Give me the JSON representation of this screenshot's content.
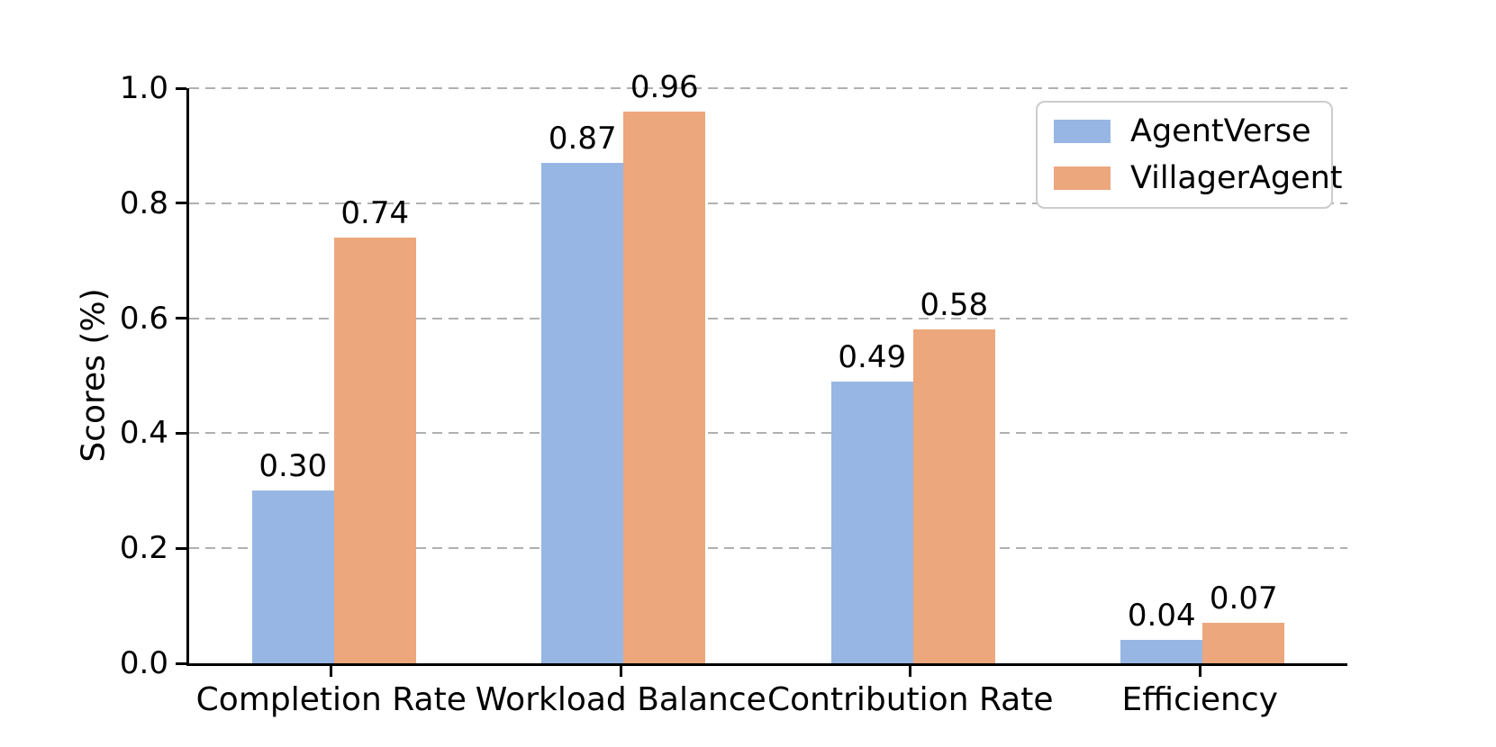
{
  "chart_data": {
    "type": "bar",
    "title": "",
    "ylabel": "Scores (%)",
    "xlabel": "",
    "categories": [
      "Completion Rate",
      "Workload Balance",
      "Contribution Rate",
      "Efficiency"
    ],
    "series": [
      {
        "name": "AgentVerse",
        "color": "#97b6e4",
        "values": [
          0.3,
          0.87,
          0.49,
          0.04
        ],
        "value_labels": [
          "0.30",
          "0.87",
          "0.49",
          "0.04"
        ]
      },
      {
        "name": "VillagerAgent",
        "color": "#eca77d",
        "values": [
          0.74,
          0.96,
          0.58,
          0.07
        ],
        "value_labels": [
          "0.74",
          "0.96",
          "0.58",
          "0.07"
        ]
      }
    ],
    "ylim": [
      0.0,
      1.0
    ],
    "yticks": [
      0.0,
      0.2,
      0.4,
      0.6,
      0.8,
      1.0
    ],
    "ytick_labels": [
      "0.0",
      "0.2",
      "0.4",
      "0.6",
      "0.8",
      "1.0"
    ],
    "grid": "horizontal-dashed",
    "gridline_color": "#b0b0b0",
    "legend_position": "upper-right",
    "spine_color": "#000000",
    "background_color": "#ffffff"
  }
}
